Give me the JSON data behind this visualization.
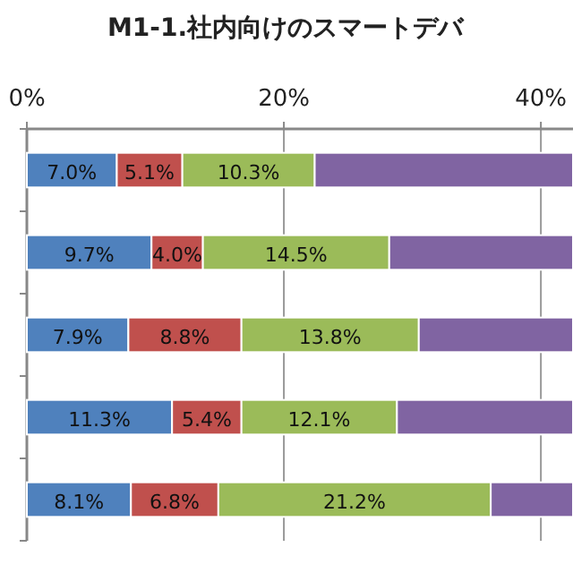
{
  "chart_data": {
    "type": "bar",
    "orientation": "horizontal",
    "stacked": true,
    "title": "M1-1.社内向けのスマートデバ",
    "categories": [
      null,
      null,
      null,
      null,
      null
    ],
    "series": [
      {
        "color": "#4f81bd",
        "values": [
          7.0,
          9.7,
          7.9,
          11.3,
          8.1
        ],
        "value_labels": [
          "7.0%",
          "9.7%",
          "7.9%",
          "11.3%",
          "8.1%"
        ]
      },
      {
        "color": "#c0504d",
        "values": [
          5.1,
          4.0,
          8.8,
          5.4,
          6.8
        ],
        "value_labels": [
          "5.1%",
          "4.0%",
          "8.8%",
          "5.4%",
          "6.8%"
        ]
      },
      {
        "color": "#9bbb59",
        "values": [
          10.3,
          14.5,
          13.8,
          12.1,
          21.2
        ],
        "value_labels": [
          "10.3%",
          "14.5%",
          "13.8%",
          "12.1%",
          "21.2%"
        ]
      },
      {
        "color": "#8064a2",
        "values": [
          20.1,
          14.3,
          12.0,
          13.7,
          6.4
        ]
      }
    ],
    "xlim": [
      0,
      42.5
    ],
    "xticks": [
      {
        "value": 0,
        "label": "0%"
      },
      {
        "value": 20,
        "label": "20%"
      },
      {
        "value": 40,
        "label": "40%"
      }
    ],
    "grid": "x"
  }
}
